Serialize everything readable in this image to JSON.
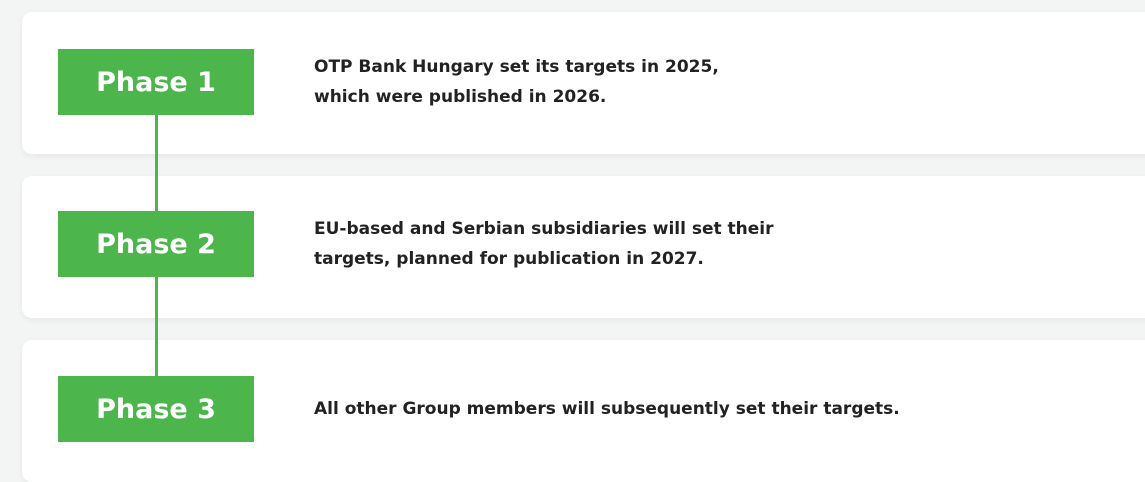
{
  "phases": [
    {
      "label": "Phase 1",
      "text": [
        "OTP Bank Hungary set its targets in 2025,",
        "which were published in 2026."
      ]
    },
    {
      "label": "Phase 2",
      "text": [
        "EU-based and Serbian subsidiaries will set their",
        "targets, planned for publication in 2027."
      ]
    },
    {
      "label": "Phase 3",
      "text": [
        "All other Group members will subsequently set their targets."
      ]
    }
  ]
}
